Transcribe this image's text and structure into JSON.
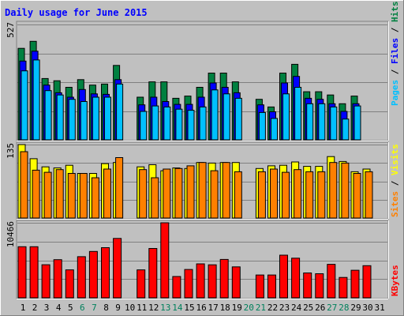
{
  "chart_data": {
    "type": "bar",
    "title": "Daily usage for June 2015",
    "days": [
      "1",
      "2",
      "3",
      "4",
      "5",
      "6",
      "7",
      "8",
      "9",
      "10",
      "11",
      "12",
      "13",
      "14",
      "15",
      "16",
      "17",
      "18",
      "19",
      "20",
      "21",
      "22",
      "23",
      "24",
      "25",
      "26",
      "27",
      "28",
      "29",
      "30",
      "31"
    ],
    "weekend_days": [
      "6",
      "7",
      "13",
      "14",
      "20",
      "21",
      "27",
      "28"
    ],
    "panels": [
      {
        "id": "top",
        "max_label": "527",
        "ymax": 527,
        "legend": [
          {
            "name": "Pages",
            "color": "#00c0ff"
          },
          {
            "name": "Files",
            "color": "#0000ff"
          },
          {
            "name": "Hits",
            "color": "#008040"
          }
        ],
        "series": [
          {
            "name": "Hits",
            "values": [
              418,
              450,
              280,
              270,
              240,
              275,
              250,
              255,
              340,
              0,
              195,
              265,
              265,
              190,
              200,
              240,
              305,
              305,
              265,
              0,
              185,
              150,
              305,
              345,
              220,
              220,
              205,
              165,
              200,
              0,
              0
            ]
          },
          {
            "name": "Files",
            "values": [
              360,
              405,
              250,
              215,
              195,
              230,
              210,
              208,
              275,
              0,
              160,
              195,
              175,
              162,
              162,
              195,
              260,
              240,
              215,
              0,
              160,
              128,
              260,
              290,
              190,
              185,
              165,
              130,
              165,
              0,
              0
            ]
          },
          {
            "name": "Pages",
            "values": [
              315,
              365,
              225,
              205,
              185,
              175,
              195,
              195,
              255,
              0,
              130,
              155,
              150,
              140,
              135,
              150,
              228,
              210,
              190,
              0,
              125,
              98,
              210,
              240,
              165,
              165,
              150,
              95,
              155,
              0,
              0
            ]
          }
        ]
      },
      {
        "id": "middle",
        "max_label": "135",
        "ymax": 135,
        "legend": [
          {
            "name": "Sites",
            "color": "#ff8000"
          },
          {
            "name": "Visits",
            "color": "#ffff00"
          }
        ],
        "series": [
          {
            "name": "Visits",
            "values": [
              135,
              109,
              94,
              92,
              97,
              82,
              82,
              100,
              102,
              0,
              94,
              98,
              87,
              92,
              91,
              102,
              101,
              102,
              102,
              0,
              91,
              96,
              97,
              103,
              95,
              95,
              113,
              104,
              85,
              90,
              0
            ]
          },
          {
            "name": "Sites",
            "values": [
              122,
              88,
              84,
              89,
              82,
              82,
              74,
              90,
              111,
              0,
              89,
              74,
              90,
              91,
              96,
              102,
              87,
              102,
              85,
              0,
              85,
              90,
              84,
              89,
              85,
              85,
              102,
              101,
              82,
              85,
              0
            ]
          }
        ]
      },
      {
        "id": "bottom",
        "max_label": "10466",
        "ymax": 10466,
        "legend": [
          {
            "name": "KBytes",
            "color": "#ff0000"
          }
        ],
        "series": [
          {
            "name": "KBytes",
            "values": [
              7130,
              7130,
              4620,
              5320,
              3900,
              5740,
              6470,
              7000,
              8290,
              0,
              3900,
              6890,
              10466,
              2980,
              3960,
              4740,
              4600,
              5350,
              4320,
              0,
              3180,
              3180,
              5950,
              5530,
              3470,
              3360,
              4670,
              2840,
              3850,
              4480,
              0
            ]
          }
        ]
      }
    ]
  }
}
